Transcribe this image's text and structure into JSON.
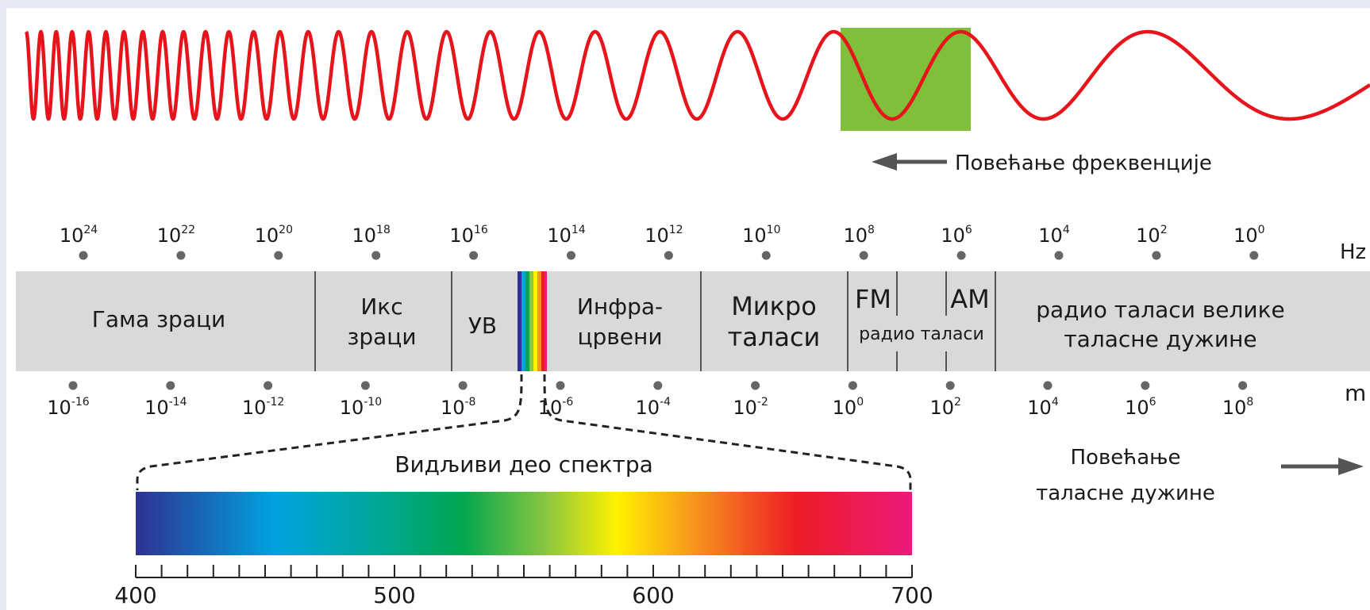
{
  "colors": {
    "wave": "#e8141c",
    "highlight": "#7fbf3a",
    "band": "#d9d9d9",
    "arrow": "#555555",
    "background": "#e6e8f6"
  },
  "frequency_arrow_label": "Повећање фреквенције",
  "frequency_unit": "Hz",
  "frequency_ticks": [
    {
      "base": "10",
      "exp": "24"
    },
    {
      "base": "10",
      "exp": "22"
    },
    {
      "base": "10",
      "exp": "20"
    },
    {
      "base": "10",
      "exp": "18"
    },
    {
      "base": "10",
      "exp": "16"
    },
    {
      "base": "10",
      "exp": "14"
    },
    {
      "base": "10",
      "exp": "12"
    },
    {
      "base": "10",
      "exp": "10"
    },
    {
      "base": "10",
      "exp": "8"
    },
    {
      "base": "10",
      "exp": "6"
    },
    {
      "base": "10",
      "exp": "4"
    },
    {
      "base": "10",
      "exp": "2"
    },
    {
      "base": "10",
      "exp": "0"
    }
  ],
  "wavelength_unit": "m",
  "wavelength_ticks": [
    {
      "base": "10",
      "exp": "-16"
    },
    {
      "base": "10",
      "exp": "-14"
    },
    {
      "base": "10",
      "exp": "-12"
    },
    {
      "base": "10",
      "exp": "-10"
    },
    {
      "base": "10",
      "exp": "-8"
    },
    {
      "base": "10",
      "exp": "-6"
    },
    {
      "base": "10",
      "exp": "-4"
    },
    {
      "base": "10",
      "exp": "-2"
    },
    {
      "base": "10",
      "exp": "0"
    },
    {
      "base": "10",
      "exp": "2"
    },
    {
      "base": "10",
      "exp": "4"
    },
    {
      "base": "10",
      "exp": "6"
    },
    {
      "base": "10",
      "exp": "8"
    }
  ],
  "bands": {
    "gamma": [
      "Гама зраци"
    ],
    "xray": [
      "Икс",
      "зраци"
    ],
    "uv": [
      "УВ"
    ],
    "infrared": [
      "Инфра-",
      "црвени"
    ],
    "microwave": [
      "Микро",
      "таласи"
    ],
    "fm": "FM",
    "am": "AM",
    "radio": "радио таласи",
    "long_radio": [
      "радио таласи велике",
      "таласне дужине"
    ]
  },
  "visible_label": "Видљиви део спектра",
  "visible_ticks": [
    "400",
    "500",
    "600",
    "700"
  ],
  "wavelength_arrow_label": [
    "Повећање",
    "таласне дужине"
  ]
}
